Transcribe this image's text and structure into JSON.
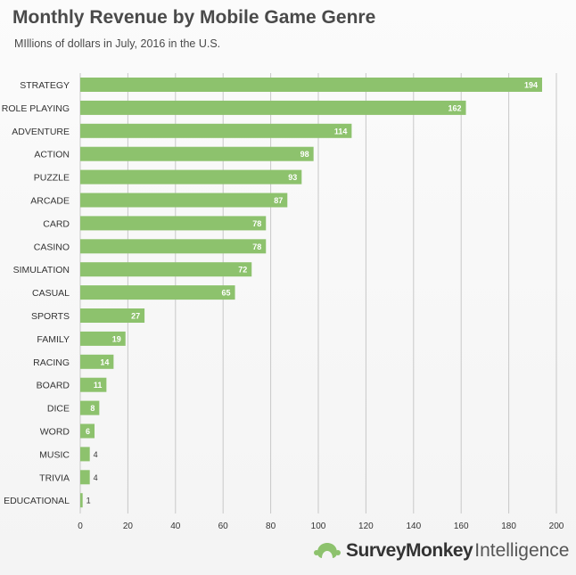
{
  "title": "Monthly Revenue by Mobile Game Genre",
  "subtitle": "MIllions of dollars in July, 2016 in the U.S.",
  "footer": {
    "brand": "SurveyMonkey",
    "suffix": "Intelligence",
    "logo_icon": "surveymonkey-logo-icon"
  },
  "colors": {
    "bar": "#8dc26d",
    "grid": "#c8c8c8"
  },
  "chart_data": {
    "type": "bar",
    "orientation": "horizontal",
    "categories": [
      "STRATEGY",
      "ROLE PLAYING",
      "ADVENTURE",
      "ACTION",
      "PUZZLE",
      "ARCADE",
      "CARD",
      "CASINO",
      "SIMULATION",
      "CASUAL",
      "SPORTS",
      "FAMILY",
      "RACING",
      "BOARD",
      "DICE",
      "WORD",
      "MUSIC",
      "TRIVIA",
      "EDUCATIONAL"
    ],
    "values": [
      194,
      162,
      114,
      98,
      93,
      87,
      78,
      78,
      72,
      65,
      27,
      19,
      14,
      11,
      8,
      6,
      4,
      4,
      1
    ],
    "title": "Monthly Revenue by Mobile Game Genre",
    "subtitle": "MIllions of dollars in July, 2016 in the U.S.",
    "xlabel": "",
    "ylabel": "",
    "xlim": [
      0,
      200
    ],
    "xticks": [
      0,
      20,
      40,
      60,
      80,
      100,
      120,
      140,
      160,
      180,
      200
    ],
    "grid": "vertical",
    "legend": "none"
  }
}
